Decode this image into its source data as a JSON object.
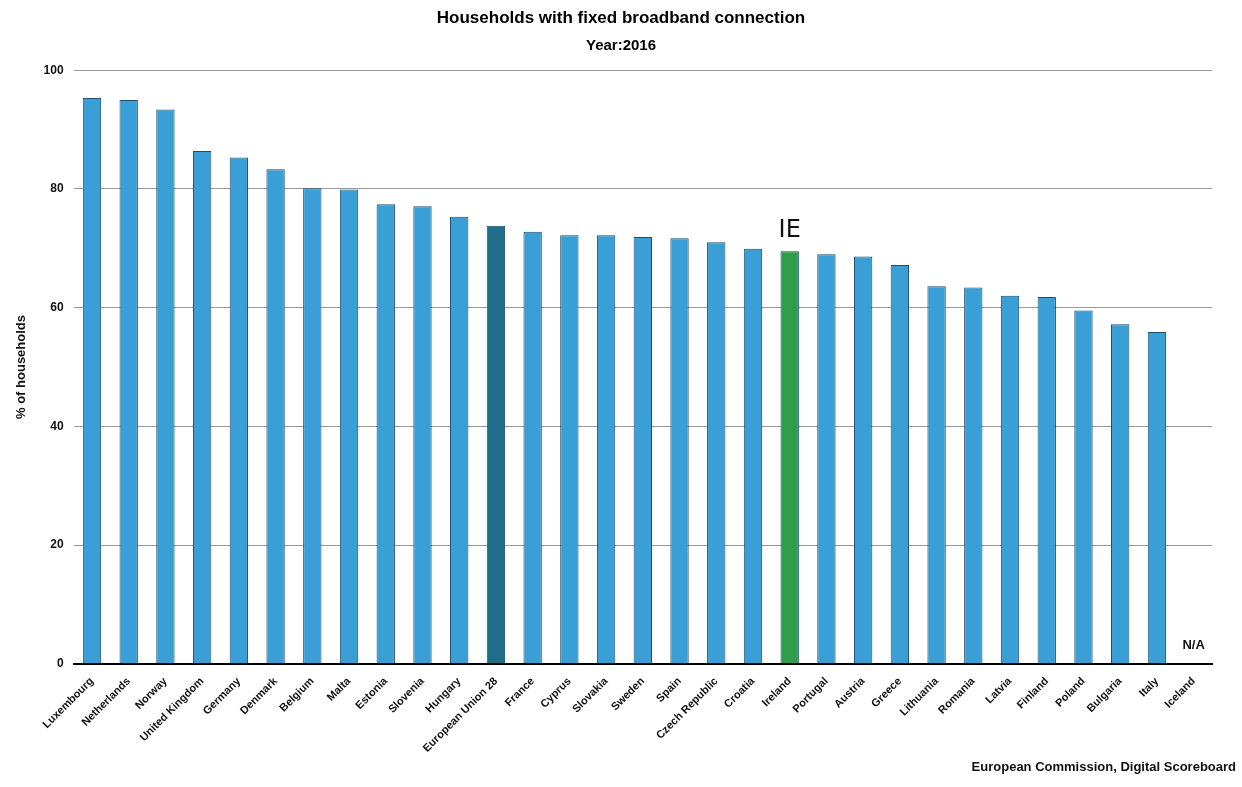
{
  "chart_data": {
    "type": "bar",
    "title": "Households with fixed broadband connection",
    "subtitle": "Year:2016",
    "ylabel": "% of households",
    "categories": [
      "Luxembourg",
      "Netherlands",
      "Norway",
      "United Kingdom",
      "Germany",
      "Denmark",
      "Belgium",
      "Malta",
      "Estonia",
      "Slovenia",
      "Hungary",
      "European Union 28",
      "France",
      "Cyprus",
      "Slovakia",
      "Sweden",
      "Spain",
      "Czech Republic",
      "Croatia",
      "Ireland",
      "Portugal",
      "Austria",
      "Greece",
      "Lithuania",
      "Romania",
      "Latvia",
      "Finland",
      "Poland",
      "Bulgaria",
      "Italy",
      "Iceland"
    ],
    "values": [
      95.3,
      95.0,
      93.4,
      86.4,
      85.3,
      83.3,
      80.1,
      79.9,
      77.4,
      77.1,
      75.3,
      73.8,
      72.8,
      72.2,
      72.2,
      71.9,
      71.7,
      71.0,
      69.9,
      69.5,
      69.0,
      68.6,
      67.2,
      63.6,
      63.4,
      62.0,
      61.8,
      59.5,
      57.2,
      55.9,
      null
    ],
    "colors": [
      "#3a9fd6",
      "#3a9fd6",
      "#3a9fd6",
      "#3a9fd6",
      "#3a9fd6",
      "#3a9fd6",
      "#3a9fd6",
      "#3a9fd6",
      "#3a9fd6",
      "#3a9fd6",
      "#3a9fd6",
      "#1f6e8c",
      "#3a9fd6",
      "#3a9fd6",
      "#3a9fd6",
      "#3a9fd6",
      "#3a9fd6",
      "#3a9fd6",
      "#3a9fd6",
      "#2e9e48",
      "#3a9fd6",
      "#3a9fd6",
      "#3a9fd6",
      "#3a9fd6",
      "#3a9fd6",
      "#3a9fd6",
      "#3a9fd6",
      "#3a9fd6",
      "#3a9fd6",
      "#3a9fd6",
      "#3a9fd6"
    ],
    "ylim": [
      0,
      100
    ],
    "yticks": [
      0,
      20,
      40,
      60,
      80,
      100
    ],
    "grid": "y",
    "annotations": [
      {
        "text": "IE",
        "x": "Ireland",
        "y": 69.5
      },
      "N/A",
      "European Commission, Digital Scoreboard"
    ]
  }
}
